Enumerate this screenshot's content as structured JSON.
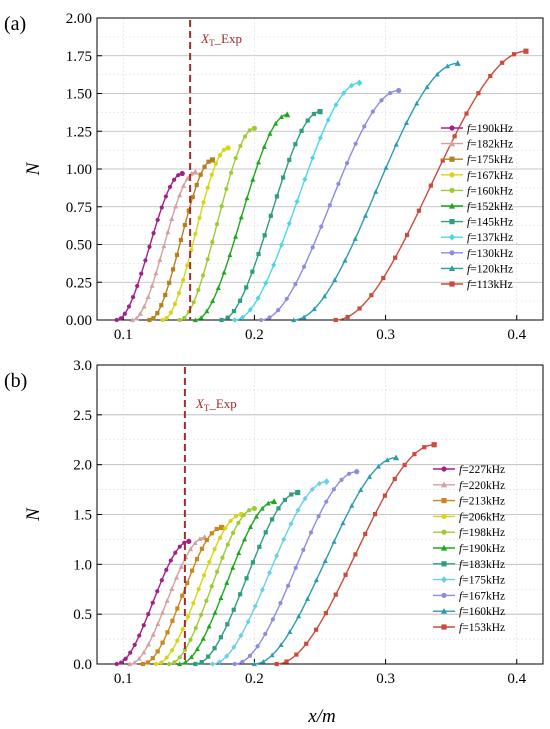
{
  "chart_data": [
    {
      "panel": "(a)",
      "type": "line",
      "title": "",
      "xlabel": "",
      "ylabel": "N",
      "xlim": [
        0.08,
        0.42
      ],
      "ylim": [
        0,
        2.0
      ],
      "xticks": [
        "0.1",
        "0.2",
        "0.3",
        "0.4"
      ],
      "yticks": [
        "0.00",
        "0.25",
        "0.50",
        "0.75",
        "1.00",
        "1.25",
        "1.50",
        "1.75",
        "2.00"
      ],
      "grid": true,
      "legend_position": "right",
      "marker_line": {
        "x": 0.151,
        "label": "X",
        "label_sub": "T",
        "label_suffix": "_Exp",
        "color": "#a52a2a"
      },
      "series": [
        {
          "name": "f=190kHz",
          "marker": "circle",
          "color": "#a0218a",
          "x0": 0.095,
          "x1": 0.145,
          "ymax": 0.97
        },
        {
          "name": "f=182kHz",
          "marker": "triangle",
          "color": "#d4a0a0",
          "x0": 0.107,
          "x1": 0.155,
          "ymax": 0.98
        },
        {
          "name": "f=175kHz",
          "marker": "square",
          "color": "#b5801e",
          "x0": 0.12,
          "x1": 0.168,
          "ymax": 1.06
        },
        {
          "name": "f=167kHz",
          "marker": "circle",
          "color": "#d6d616",
          "x0": 0.13,
          "x1": 0.18,
          "ymax": 1.14
        },
        {
          "name": "f=160kHz",
          "marker": "circle",
          "color": "#9ccc32",
          "x0": 0.143,
          "x1": 0.2,
          "ymax": 1.27
        },
        {
          "name": "f=152kHz",
          "marker": "triangle",
          "color": "#1ea81e",
          "x0": 0.155,
          "x1": 0.225,
          "ymax": 1.36
        },
        {
          "name": "f=145kHz",
          "marker": "square",
          "color": "#2e9e7e",
          "x0": 0.175,
          "x1": 0.25,
          "ymax": 1.38
        },
        {
          "name": "f=137kHz",
          "marker": "diamond",
          "color": "#4dd6e6",
          "x0": 0.185,
          "x1": 0.28,
          "ymax": 1.57
        },
        {
          "name": "f=130kHz",
          "marker": "circle",
          "color": "#8c8ce0",
          "x0": 0.205,
          "x1": 0.31,
          "ymax": 1.52
        },
        {
          "name": "f=120kHz",
          "marker": "triangle",
          "color": "#2a9cae",
          "x0": 0.23,
          "x1": 0.355,
          "ymax": 1.7
        },
        {
          "name": "f=113kHz",
          "marker": "square",
          "color": "#cc4a3c",
          "x0": 0.262,
          "x1": 0.407,
          "ymax": 1.78
        }
      ]
    },
    {
      "panel": "(b)",
      "type": "line",
      "title": "",
      "xlabel": "x/m",
      "ylabel": "N",
      "xlim": [
        0.08,
        0.42
      ],
      "ylim": [
        0,
        3.0
      ],
      "xticks": [
        "0.1",
        "0.2",
        "0.3",
        "0.4"
      ],
      "yticks": [
        "0.0",
        "0.5",
        "1.0",
        "1.5",
        "2.0",
        "2.5",
        "3.0"
      ],
      "grid": true,
      "legend_position": "right",
      "marker_line": {
        "x": 0.147,
        "label": "X",
        "label_sub": "T",
        "label_suffix": "_Exp",
        "color": "#a52a2a"
      },
      "series": [
        {
          "name": "f=227kHz",
          "marker": "circle",
          "color": "#a0218a",
          "x0": 0.095,
          "x1": 0.15,
          "ymax": 1.23
        },
        {
          "name": "f=220kHz",
          "marker": "triangle",
          "color": "#d4a0a0",
          "x0": 0.105,
          "x1": 0.162,
          "ymax": 1.27
        },
        {
          "name": "f=213kHz",
          "marker": "square",
          "color": "#c8881e",
          "x0": 0.115,
          "x1": 0.175,
          "ymax": 1.37
        },
        {
          "name": "f=206kHz",
          "marker": "circle",
          "color": "#d6d616",
          "x0": 0.125,
          "x1": 0.19,
          "ymax": 1.5
        },
        {
          "name": "f=198kHz",
          "marker": "circle",
          "color": "#9ccc32",
          "x0": 0.135,
          "x1": 0.2,
          "ymax": 1.56
        },
        {
          "name": "f=190kHz",
          "marker": "triangle",
          "color": "#1ea81e",
          "x0": 0.143,
          "x1": 0.215,
          "ymax": 1.63
        },
        {
          "name": "f=183kHz",
          "marker": "square",
          "color": "#2e9e7e",
          "x0": 0.155,
          "x1": 0.233,
          "ymax": 1.72
        },
        {
          "name": "f=175kHz",
          "marker": "diamond",
          "color": "#6ad0e6",
          "x0": 0.168,
          "x1": 0.255,
          "ymax": 1.83
        },
        {
          "name": "f=167kHz",
          "marker": "circle",
          "color": "#8c8ce0",
          "x0": 0.185,
          "x1": 0.278,
          "ymax": 1.93
        },
        {
          "name": "f=160kHz",
          "marker": "triangle",
          "color": "#2a9cae",
          "x0": 0.2,
          "x1": 0.308,
          "ymax": 2.07
        },
        {
          "name": "f=153kHz",
          "marker": "square",
          "color": "#cc4a3c",
          "x0": 0.217,
          "x1": 0.337,
          "ymax": 2.2
        }
      ]
    }
  ]
}
